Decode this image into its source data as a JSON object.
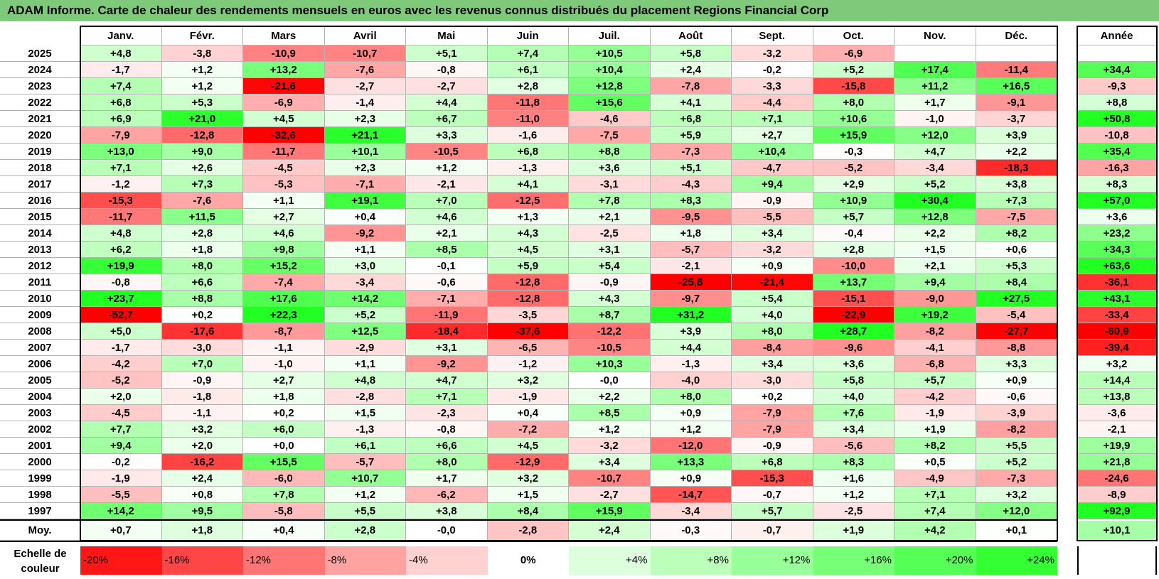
{
  "title": "ADAM Informe. Carte de chaleur des rendements mensuels en euros avec les revenus connus distribués du placement Regions Financial Corp",
  "chart_data": {
    "type": "heatmap",
    "columns": [
      "Janv.",
      "Févr.",
      "Mars",
      "Avril",
      "Mai",
      "Juin",
      "Juil.",
      "Août",
      "Sept.",
      "Oct.",
      "Nov.",
      "Déc."
    ],
    "year_header": "Année",
    "rows": [
      {
        "label": "2025",
        "values": [
          "+4,8",
          "-3,8",
          "-10,9",
          "-10,7",
          "+5,1",
          "+7,4",
          "+10,5",
          "+5,8",
          "-3,2",
          "-6,9",
          "",
          ""
        ],
        "year": ""
      },
      {
        "label": "2024",
        "values": [
          "-1,7",
          "+1,2",
          "+13,2",
          "-7,6",
          "-0,8",
          "+6,1",
          "+10,4",
          "+2,4",
          "-0,2",
          "+5,2",
          "+17,4",
          "-11,4"
        ],
        "year": "+34,4"
      },
      {
        "label": "2023",
        "values": [
          "+7,4",
          "+1,2",
          "-21,6",
          "-2,7",
          "-2,7",
          "+2,8",
          "+12,8",
          "-7,8",
          "-3,3",
          "-15,8",
          "+11,2",
          "+16,5"
        ],
        "year": "-9,3"
      },
      {
        "label": "2022",
        "values": [
          "+6,8",
          "+5,3",
          "-6,9",
          "-1,4",
          "+4,4",
          "-11,8",
          "+15,6",
          "+4,1",
          "-4,4",
          "+8,0",
          "+1,7",
          "-9,1"
        ],
        "year": "+8,8"
      },
      {
        "label": "2021",
        "values": [
          "+6,9",
          "+21,0",
          "+4,5",
          "+2,3",
          "+6,7",
          "-11,0",
          "-4,6",
          "+6,8",
          "+7,1",
          "+10,6",
          "-1,0",
          "-3,7"
        ],
        "year": "+50,8"
      },
      {
        "label": "2020",
        "values": [
          "-7,9",
          "-12,8",
          "-32,6",
          "+21,1",
          "+3,3",
          "-1,6",
          "-7,5",
          "+5,9",
          "+2,7",
          "+15,9",
          "+12,0",
          "+3,9"
        ],
        "year": "-10,8"
      },
      {
        "label": "2019",
        "values": [
          "+13,0",
          "+9,0",
          "-11,7",
          "+10,1",
          "-10,5",
          "+6,8",
          "+8,8",
          "-7,3",
          "+10,4",
          "-0,3",
          "+4,7",
          "+2,2"
        ],
        "year": "+35,4"
      },
      {
        "label": "2018",
        "values": [
          "+7,1",
          "+2,6",
          "-4,5",
          "+2,3",
          "+1,2",
          "-1,3",
          "+3,6",
          "+5,1",
          "-4,7",
          "-5,2",
          "-3,4",
          "-18,3"
        ],
        "year": "-16,3"
      },
      {
        "label": "2017",
        "values": [
          "-1,2",
          "+7,3",
          "-5,3",
          "-7,1",
          "-2,1",
          "+4,1",
          "-3,1",
          "-4,3",
          "+9,4",
          "+2,9",
          "+5,2",
          "+3,8"
        ],
        "year": "+8,3"
      },
      {
        "label": "2016",
        "values": [
          "-15,3",
          "-7,6",
          "+1,1",
          "+19,1",
          "+7,0",
          "-12,5",
          "+7,8",
          "+8,3",
          "-0,9",
          "+10,9",
          "+30,4",
          "+7,3"
        ],
        "year": "+57,0"
      },
      {
        "label": "2015",
        "values": [
          "-11,7",
          "+11,5",
          "+2,7",
          "+0,4",
          "+4,6",
          "+1,3",
          "+2,1",
          "-9,5",
          "-5,5",
          "+5,7",
          "+12,8",
          "-7,5"
        ],
        "year": "+3,6"
      },
      {
        "label": "2014",
        "values": [
          "+4,8",
          "+2,8",
          "+4,6",
          "-9,2",
          "+2,1",
          "+4,3",
          "-2,5",
          "+1,8",
          "+3,4",
          "-0,4",
          "+2,2",
          "+8,2"
        ],
        "year": "+23,2"
      },
      {
        "label": "2013",
        "values": [
          "+6,2",
          "+1,8",
          "+9,8",
          "+1,1",
          "+8,5",
          "+4,5",
          "+3,1",
          "-5,7",
          "-3,2",
          "+2,8",
          "+1,5",
          "+0,6"
        ],
        "year": "+34,3"
      },
      {
        "label": "2012",
        "values": [
          "+19,9",
          "+8,0",
          "+15,2",
          "+3,0",
          "-0,1",
          "+5,9",
          "+5,4",
          "-2,1",
          "+0,9",
          "-10,0",
          "+2,1",
          "+5,3"
        ],
        "year": "+63,6"
      },
      {
        "label": "2011",
        "values": [
          "-0,8",
          "+6,6",
          "-7,4",
          "-3,4",
          "-0,6",
          "-12,8",
          "-0,9",
          "-25,8",
          "-21,4",
          "+13,7",
          "+9,4",
          "+8,4"
        ],
        "year": "-36,1"
      },
      {
        "label": "2010",
        "values": [
          "+23,7",
          "+8,8",
          "+17,6",
          "+14,2",
          "-7,1",
          "-12,8",
          "+4,3",
          "-9,7",
          "+5,4",
          "-15,1",
          "-9,0",
          "+27,5"
        ],
        "year": "+43,1"
      },
      {
        "label": "2009",
        "values": [
          "-52,7",
          "+0,2",
          "+22,3",
          "+5,2",
          "-11,9",
          "-3,5",
          "+8,7",
          "+31,2",
          "+4,0",
          "-22,9",
          "+19,2",
          "-5,4"
        ],
        "year": "-33,4"
      },
      {
        "label": "2008",
        "values": [
          "+5,0",
          "-17,6",
          "-8,7",
          "+12,5",
          "-18,4",
          "-37,6",
          "-12,2",
          "+3,9",
          "+8,0",
          "+28,7",
          "-8,2",
          "-27,7"
        ],
        "year": "-60,9"
      },
      {
        "label": "2007",
        "values": [
          "-1,7",
          "-3,0",
          "-1,1",
          "-2,9",
          "+3,1",
          "-6,5",
          "-10,5",
          "+4,4",
          "-8,4",
          "-9,6",
          "-4,1",
          "-8,8"
        ],
        "year": "-39,4"
      },
      {
        "label": "2006",
        "values": [
          "-4,2",
          "+7,0",
          "-1,0",
          "+1,1",
          "-9,2",
          "-1,2",
          "+10,3",
          "-1,3",
          "+3,4",
          "+3,6",
          "-6,8",
          "+3,3"
        ],
        "year": "+3,2"
      },
      {
        "label": "2005",
        "values": [
          "-5,2",
          "-0,9",
          "+2,7",
          "+4,8",
          "+4,7",
          "+3,2",
          "-0,0",
          "-4,0",
          "-3,0",
          "+5,8",
          "+5,7",
          "+0,9"
        ],
        "year": "+14,4"
      },
      {
        "label": "2004",
        "values": [
          "+2,0",
          "-1,8",
          "+1,8",
          "-2,8",
          "+7,1",
          "-1,9",
          "+2,2",
          "+8,0",
          "+0,2",
          "+4,0",
          "-4,2",
          "-0,6"
        ],
        "year": "+13,8"
      },
      {
        "label": "2003",
        "values": [
          "-4,5",
          "-1,1",
          "+0,2",
          "+1,5",
          "-2,3",
          "+0,4",
          "+8,5",
          "+0,9",
          "-7,9",
          "+7,6",
          "-1,9",
          "-3,9"
        ],
        "year": "-3,6"
      },
      {
        "label": "2002",
        "values": [
          "+7,7",
          "+3,2",
          "+6,0",
          "-1,3",
          "-0,8",
          "-7,2",
          "+1,2",
          "+1,2",
          "-7,9",
          "+3,4",
          "+1,9",
          "-8,2"
        ],
        "year": "-2,1"
      },
      {
        "label": "2001",
        "values": [
          "+9,4",
          "+2,0",
          "+0,0",
          "+6,1",
          "+6,6",
          "+4,5",
          "-3,2",
          "-12,0",
          "-0,9",
          "-5,6",
          "+8,2",
          "+5,5"
        ],
        "year": "+19,9"
      },
      {
        "label": "2000",
        "values": [
          "-0,2",
          "-16,2",
          "+15,5",
          "-5,7",
          "+8,0",
          "-12,9",
          "+3,4",
          "+13,3",
          "+6,8",
          "+8,3",
          "+0,5",
          "+5,2"
        ],
        "year": "+21,8"
      },
      {
        "label": "1999",
        "values": [
          "-1,9",
          "+2,4",
          "-6,0",
          "+10,7",
          "+1,7",
          "+3,2",
          "-10,7",
          "+0,9",
          "-15,3",
          "+1,6",
          "-4,9",
          "-7,3"
        ],
        "year": "-24,6"
      },
      {
        "label": "1998",
        "values": [
          "-5,5",
          "+0,8",
          "+7,8",
          "+1,2",
          "-6,2",
          "+1,5",
          "-2,7",
          "-14,7",
          "-0,7",
          "+1,2",
          "+7,1",
          "+3,2"
        ],
        "year": "-8,9"
      },
      {
        "label": "1997",
        "values": [
          "+14,2",
          "+9,5",
          "-5,8",
          "+5,5",
          "+3,8",
          "+8,4",
          "+15,9",
          "-3,4",
          "+5,7",
          "-2,5",
          "+7,4",
          "+12,0"
        ],
        "year": "+92,9"
      }
    ],
    "average": {
      "label": "Moy.",
      "values": [
        "+0,7",
        "+1,8",
        "+0,4",
        "+2,8",
        "-0,0",
        "-2,8",
        "+2,4",
        "-0,3",
        "-0,7",
        "+1,9",
        "+4,2",
        "+0,1"
      ],
      "year": "+10,1"
    },
    "scale": {
      "label": "Echelle de couleur",
      "items": [
        {
          "text": "-20%",
          "value": -20
        },
        {
          "text": "-16%",
          "value": -16
        },
        {
          "text": "-12%",
          "value": -12
        },
        {
          "text": "-8%",
          "value": -8
        },
        {
          "text": "-4%",
          "value": -4
        },
        {
          "text": "0%",
          "value": 0
        },
        {
          "text": "+4%",
          "value": 4
        },
        {
          "text": "+8%",
          "value": 8
        },
        {
          "text": "+12%",
          "value": 12
        },
        {
          "text": "+16%",
          "value": 16
        },
        {
          "text": "+20%",
          "value": 20
        },
        {
          "text": "+24%",
          "value": 24
        }
      ]
    },
    "colors": {
      "negative": "#ff0000",
      "neutral": "#ffffff",
      "positive": "#22ff22",
      "title_bar": "#7ec97a"
    }
  }
}
